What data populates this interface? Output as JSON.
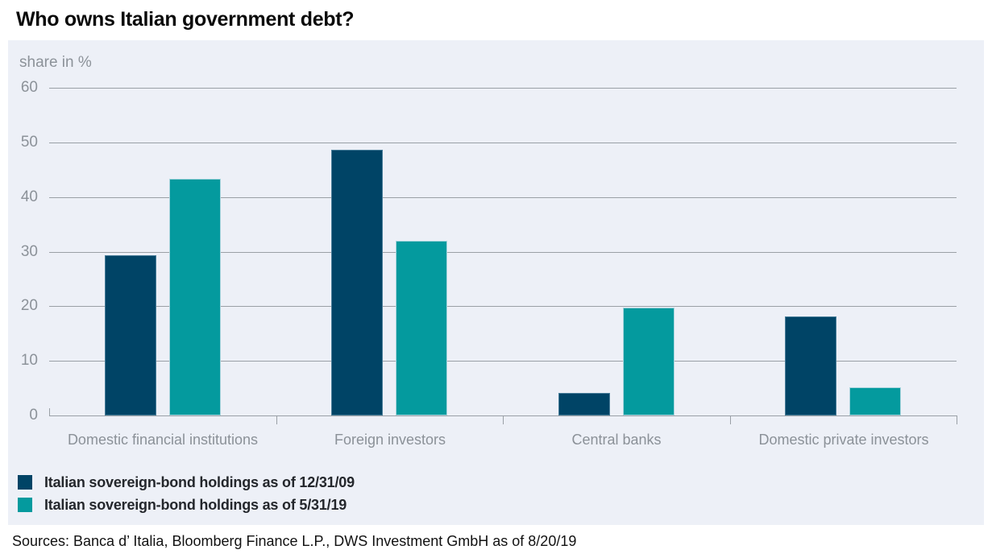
{
  "title": "Who owns Italian government debt?",
  "source_note": "Sources: Banca d’ Italia, Bloomberg Finance L.P., DWS Investment GmbH as of 8/20/19",
  "colors": {
    "series_2009": "#004466",
    "series_2019": "#049a9e",
    "series_2019_border": "#a9d4dd",
    "series_2009_border": "rgba(160,195,215,0.45)",
    "plot_background": "#edf0f7",
    "gridline": "#9aa0a6",
    "axis_text": "#8c9299",
    "legend_text": "#24272c"
  },
  "chart_data": {
    "type": "bar",
    "title": "Who owns Italian government debt?",
    "ylabel": "share in %",
    "xlabel": "",
    "ylim": [
      0,
      60
    ],
    "yticks": [
      0,
      10,
      20,
      30,
      40,
      50,
      60
    ],
    "grid": true,
    "legend_position": "bottom-left",
    "categories": [
      "Domestic financial institutions",
      "Foreign investors",
      "Central banks",
      "Domestic private investors"
    ],
    "series": [
      {
        "name": "Italian sovereign-bond holdings as of 12/31/09",
        "color": "#004466",
        "border": "rgba(160,195,215,0.45)",
        "values": [
          29.3,
          48.7,
          4.2,
          18.1
        ]
      },
      {
        "name": "Italian sovereign-bond holdings as of 5/31/19",
        "color": "#049a9e",
        "border": "#a9d4dd",
        "values": [
          43.4,
          32.0,
          19.8,
          5.1
        ]
      }
    ]
  }
}
